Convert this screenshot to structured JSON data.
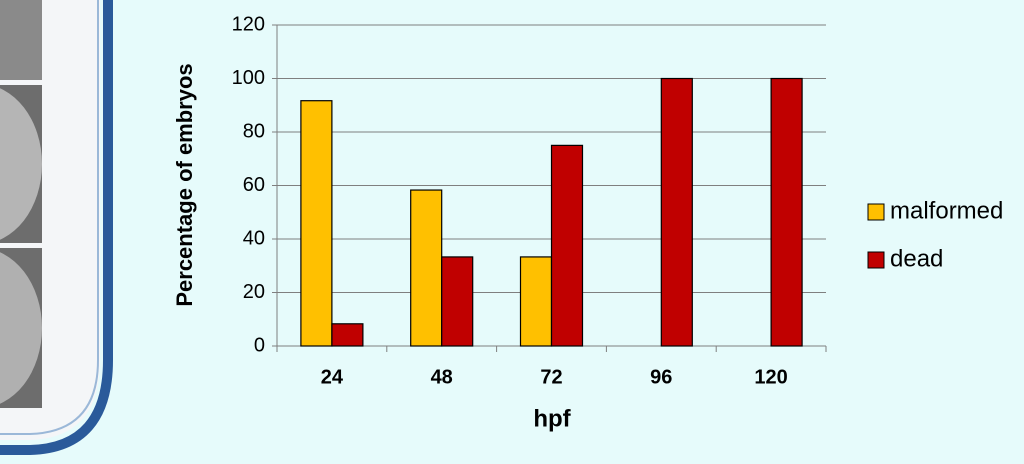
{
  "chart_data": {
    "type": "bar",
    "x_label": "hpf",
    "y_label": "Percentage of embryos",
    "categories": [
      "24",
      "48",
      "72",
      "96",
      "120"
    ],
    "series": [
      {
        "name": "malformed",
        "color": "#ffc000",
        "values": [
          91.7,
          58.3,
          33.3,
          0,
          0
        ]
      },
      {
        "name": "dead",
        "color": "#c00000",
        "values": [
          8.3,
          33.3,
          75,
          100,
          100
        ]
      }
    ],
    "ylim": [
      0,
      120
    ],
    "yticks": [
      0,
      20,
      40,
      60,
      80,
      100,
      120
    ],
    "grid": true,
    "legend": "right"
  }
}
